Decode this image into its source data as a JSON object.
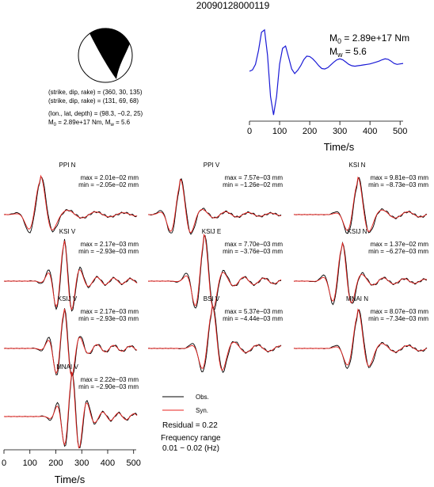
{
  "title": "20090128000119",
  "mechanism": {
    "plane1": "(strike, dip, rake) = (360, 30, 135)",
    "plane2": "(strike, dip, rake) = (131, 69, 68)",
    "location": "(lon., lat, depth) = (98.3, −0.2, 25)",
    "moment_prefix": "M",
    "moment_sub": "0",
    "moment_value": " = 2.89e+17 Nm, M",
    "mw_sub": "w",
    "mw_value": " = 5.6"
  },
  "stf_panel": {
    "m0_prefix": "M",
    "m0_sub": "0",
    "m0_value": " = 2.89e+17 Nm",
    "mw_prefix": "M",
    "mw_sub": "w",
    "mw_value": " = 5.6",
    "xlabel": "Time/s",
    "xticks": [
      "0",
      "100",
      "200",
      "300",
      "400",
      "500"
    ]
  },
  "bottom_axis": {
    "xlabel": "Time/s",
    "xticks": [
      "0",
      "100",
      "200",
      "300",
      "400",
      "500"
    ]
  },
  "legend": {
    "obs_label": "Obs.",
    "syn_label": "Syn.",
    "residual": "Residual = 0.22",
    "freq_title": "Frequency range",
    "freq_range": "0.01 − 0.02 (Hz)",
    "obs_color": "#000000",
    "syn_color": "#e8231f"
  },
  "traces": [
    {
      "station": "PPI N",
      "max": "max = 2.01e−02 mm",
      "min": "min = −2.05e−02 mm"
    },
    {
      "station": "PPI V",
      "max": "max = 7.57e−03 mm",
      "min": "min = −1.26e−02 mm"
    },
    {
      "station": "KSI N",
      "max": "max = 9.81e−03 mm",
      "min": "min = −8.73e−03 mm"
    },
    {
      "station": "KSI V",
      "max": "max = 2.17e−03 mm",
      "min": "min = −2.93e−03 mm"
    },
    {
      "station": "KSIJ E",
      "max": "max = 7.70e−03 mm",
      "min": "min = −3.76e−03 mm"
    },
    {
      "station": "KSIJ N",
      "max": "max = 1.37e−02 mm",
      "min": "min = −6.27e−03 mm"
    },
    {
      "station": "KSIJ V",
      "max": "max = 2.17e−03 mm",
      "min": "min = −2.93e−03 mm"
    },
    {
      "station": "BSI V",
      "max": "max = 5.37e−03 mm",
      "min": "min = −4.44e−03 mm"
    },
    {
      "station": "MNAI N",
      "max": "max = 8.07e−03 mm",
      "min": "min = −7.34e−03 mm"
    },
    {
      "station": "MNAI V",
      "max": "max = 2.22e−03 mm",
      "min": "min = −2.90e−03 mm"
    }
  ],
  "chart_data": {
    "type": "line",
    "title": "20090128000119",
    "source_time_function": {
      "xlabel": "Time/s",
      "xlim": [
        0,
        510
      ],
      "color": "#1a1ad6",
      "x": [
        0,
        10,
        20,
        30,
        40,
        50,
        60,
        70,
        80,
        90,
        100,
        110,
        120,
        130,
        140,
        150,
        160,
        170,
        180,
        190,
        200,
        210,
        220,
        230,
        240,
        250,
        260,
        270,
        280,
        290,
        300,
        310,
        320,
        330,
        340,
        350,
        360,
        370,
        380,
        390,
        400,
        410,
        420,
        430,
        440,
        450,
        460,
        470,
        480,
        490,
        500,
        510
      ],
      "y": [
        0,
        0.03,
        0.15,
        0.45,
        0.85,
        0.9,
        0.35,
        -0.55,
        -0.95,
        -0.55,
        0.15,
        0.5,
        0.55,
        0.3,
        0.05,
        -0.05,
        0.02,
        0.12,
        0.25,
        0.33,
        0.32,
        0.27,
        0.2,
        0.12,
        0.06,
        0.05,
        0.08,
        0.14,
        0.2,
        0.25,
        0.27,
        0.25,
        0.2,
        0.15,
        0.12,
        0.11,
        0.12,
        0.13,
        0.14,
        0.15,
        0.16,
        0.18,
        0.2,
        0.22,
        0.25,
        0.27,
        0.26,
        0.22,
        0.17,
        0.15,
        0.16,
        0.17
      ]
    },
    "waveform_xlabel": "Time/s",
    "waveform_xlim": [
      0,
      510
    ],
    "series_names": [
      "Obs.",
      "Syn."
    ]
  }
}
